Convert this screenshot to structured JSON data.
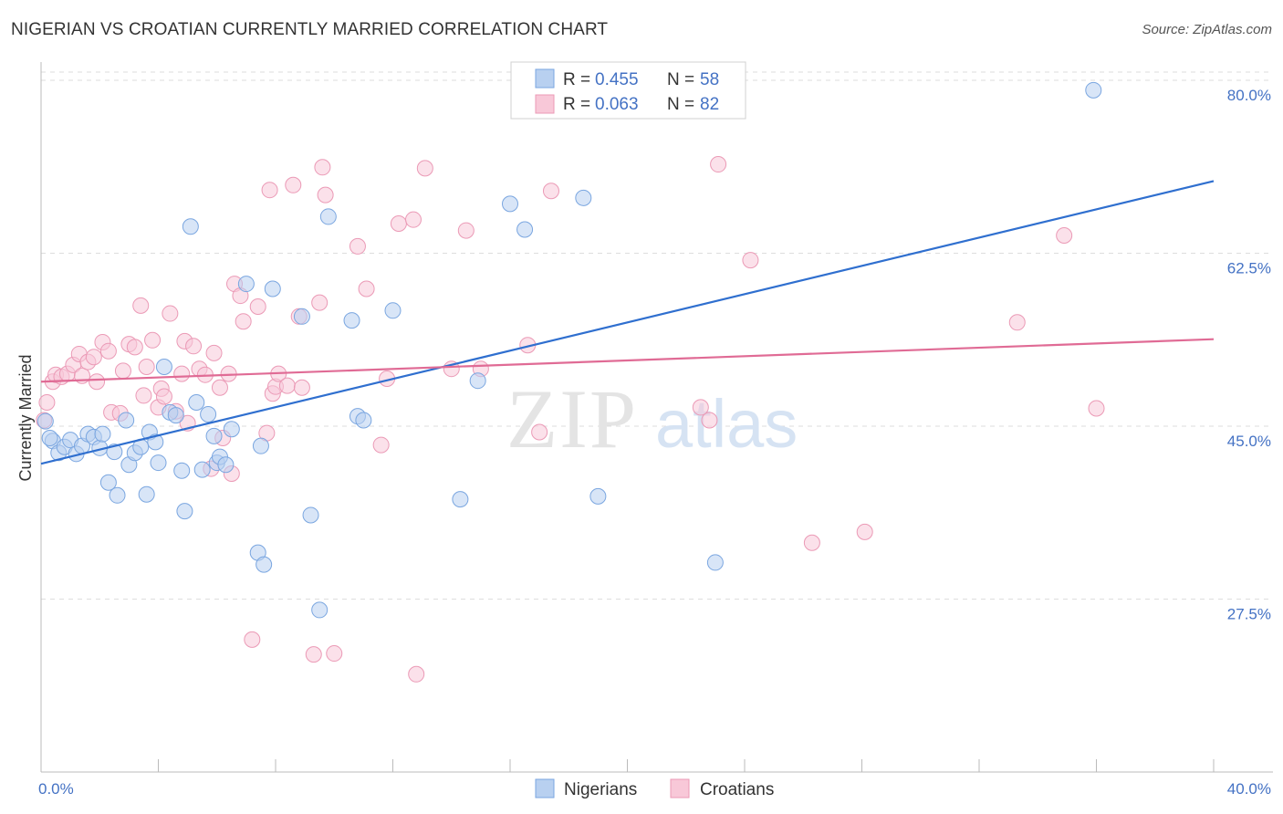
{
  "title": "NIGERIAN VS CROATIAN CURRENTLY MARRIED CORRELATION CHART",
  "source": "Source: ZipAtlas.com",
  "watermark": {
    "zip": "ZIP",
    "atlas": "atlas"
  },
  "colors": {
    "blue": "#4472c4",
    "blue_fill": "#b8d0f0",
    "blue_stroke": "#7aa6e0",
    "blue_line": "#2f6fcf",
    "pink_fill": "#f8c8d8",
    "pink_stroke": "#eb9ab6",
    "pink_line": "#e06b95",
    "grid": "#dddddd",
    "axis": "#bbbbbb"
  },
  "legend": {
    "rows": [
      {
        "r_label": "R = ",
        "r_value": "0.455",
        "n_label": "N = ",
        "n_value": "58"
      },
      {
        "r_label": "R = ",
        "r_value": "0.063",
        "n_label": "N = ",
        "n_value": "82"
      }
    ]
  },
  "bottom_legend": [
    "Nigerians",
    "Croatians"
  ],
  "chart_data": {
    "type": "scatter",
    "title": "NIGERIAN VS CROATIAN CURRENTLY MARRIED CORRELATION CHART",
    "xlabel": "",
    "ylabel": "Currently Married",
    "xlim": [
      0,
      40
    ],
    "ylim": [
      10,
      82
    ],
    "x_ticks": [
      0,
      4,
      8,
      12,
      16,
      20,
      24,
      28,
      32,
      36,
      40
    ],
    "x_tick_labels_shown": [
      {
        "value": 0,
        "label": "0.0%"
      },
      {
        "value": 40,
        "label": "40.0%"
      }
    ],
    "y_ticks": [
      {
        "value": 27.5,
        "label": "27.5%"
      },
      {
        "value": 45.0,
        "label": "45.0%"
      },
      {
        "value": 62.5,
        "label": "62.5%"
      },
      {
        "value": 80.0,
        "label": "80.0%"
      }
    ],
    "series": [
      {
        "name": "Nigerians",
        "R": 0.455,
        "N": 58,
        "trend": {
          "x": [
            0,
            40
          ],
          "y": [
            41.2,
            69.8
          ]
        },
        "points": [
          [
            0.15,
            45.5
          ],
          [
            0.4,
            43.5
          ],
          [
            0.6,
            42.3
          ],
          [
            0.8,
            42.9
          ],
          [
            1.0,
            43.6
          ],
          [
            1.2,
            42.2
          ],
          [
            1.4,
            43.0
          ],
          [
            1.6,
            44.2
          ],
          [
            1.8,
            43.9
          ],
          [
            2.0,
            42.8
          ],
          [
            2.1,
            44.2
          ],
          [
            2.3,
            39.3
          ],
          [
            2.5,
            42.4
          ],
          [
            2.6,
            38.0
          ],
          [
            2.9,
            45.6
          ],
          [
            3.0,
            41.1
          ],
          [
            3.2,
            42.3
          ],
          [
            3.4,
            42.9
          ],
          [
            3.6,
            38.1
          ],
          [
            3.7,
            44.4
          ],
          [
            3.9,
            43.4
          ],
          [
            4.0,
            41.3
          ],
          [
            4.2,
            51.0
          ],
          [
            4.4,
            46.4
          ],
          [
            4.6,
            46.1
          ],
          [
            4.8,
            40.5
          ],
          [
            4.9,
            36.4
          ],
          [
            5.1,
            65.2
          ],
          [
            5.3,
            47.4
          ],
          [
            5.5,
            40.6
          ],
          [
            5.7,
            46.2
          ],
          [
            5.9,
            44.0
          ],
          [
            6.0,
            41.3
          ],
          [
            6.1,
            41.9
          ],
          [
            6.3,
            41.1
          ],
          [
            6.5,
            44.7
          ],
          [
            7.0,
            59.4
          ],
          [
            7.4,
            32.2
          ],
          [
            7.5,
            43.0
          ],
          [
            7.6,
            31.0
          ],
          [
            7.9,
            58.9
          ],
          [
            8.9,
            56.1
          ],
          [
            9.2,
            36.0
          ],
          [
            9.5,
            26.4
          ],
          [
            9.8,
            66.2
          ],
          [
            10.6,
            55.7
          ],
          [
            10.8,
            46.0
          ],
          [
            11.0,
            45.6
          ],
          [
            12.0,
            56.7
          ],
          [
            14.3,
            37.6
          ],
          [
            14.9,
            49.6
          ],
          [
            16.0,
            67.5
          ],
          [
            16.5,
            64.9
          ],
          [
            18.5,
            68.1
          ],
          [
            19.0,
            37.9
          ],
          [
            23.0,
            31.2
          ],
          [
            35.9,
            79.0
          ],
          [
            0.3,
            43.8
          ]
        ]
      },
      {
        "name": "Croatians",
        "R": 0.063,
        "N": 82,
        "trend": {
          "x": [
            0,
            40
          ],
          "y": [
            49.5,
            53.8
          ]
        },
        "points": [
          [
            0.1,
            45.6
          ],
          [
            0.2,
            47.4
          ],
          [
            0.4,
            49.5
          ],
          [
            0.5,
            50.2
          ],
          [
            0.7,
            50.0
          ],
          [
            0.9,
            50.3
          ],
          [
            1.1,
            51.2
          ],
          [
            1.3,
            52.3
          ],
          [
            1.4,
            50.1
          ],
          [
            1.6,
            51.5
          ],
          [
            1.8,
            52.0
          ],
          [
            1.9,
            49.5
          ],
          [
            2.1,
            53.5
          ],
          [
            2.3,
            52.6
          ],
          [
            2.4,
            46.4
          ],
          [
            2.7,
            46.3
          ],
          [
            2.8,
            50.6
          ],
          [
            3.0,
            53.3
          ],
          [
            3.2,
            53.0
          ],
          [
            3.4,
            57.2
          ],
          [
            3.5,
            48.1
          ],
          [
            3.6,
            51.0
          ],
          [
            3.8,
            53.7
          ],
          [
            4.0,
            46.9
          ],
          [
            4.1,
            48.8
          ],
          [
            4.2,
            48.0
          ],
          [
            4.4,
            56.4
          ],
          [
            4.6,
            46.5
          ],
          [
            4.8,
            50.3
          ],
          [
            4.9,
            53.6
          ],
          [
            5.0,
            45.3
          ],
          [
            5.2,
            53.1
          ],
          [
            5.4,
            50.8
          ],
          [
            5.6,
            50.2
          ],
          [
            5.8,
            40.7
          ],
          [
            5.9,
            52.4
          ],
          [
            6.1,
            48.9
          ],
          [
            6.2,
            43.8
          ],
          [
            6.4,
            50.3
          ],
          [
            6.6,
            59.4
          ],
          [
            6.8,
            58.2
          ],
          [
            6.9,
            55.6
          ],
          [
            7.2,
            23.4
          ],
          [
            7.4,
            57.1
          ],
          [
            7.7,
            44.3
          ],
          [
            7.8,
            68.9
          ],
          [
            7.9,
            48.3
          ],
          [
            8.0,
            49.0
          ],
          [
            8.1,
            50.3
          ],
          [
            8.4,
            49.1
          ],
          [
            8.6,
            69.4
          ],
          [
            8.8,
            56.1
          ],
          [
            8.9,
            48.9
          ],
          [
            9.3,
            21.9
          ],
          [
            9.5,
            57.5
          ],
          [
            9.6,
            71.2
          ],
          [
            9.7,
            68.4
          ],
          [
            10.0,
            22.0
          ],
          [
            10.8,
            63.2
          ],
          [
            11.1,
            58.9
          ],
          [
            11.6,
            43.1
          ],
          [
            11.8,
            49.8
          ],
          [
            12.2,
            65.5
          ],
          [
            12.7,
            65.9
          ],
          [
            12.8,
            19.9
          ],
          [
            13.1,
            71.1
          ],
          [
            14.0,
            50.8
          ],
          [
            14.5,
            64.8
          ],
          [
            15.0,
            50.8
          ],
          [
            16.6,
            53.2
          ],
          [
            17.0,
            44.4
          ],
          [
            17.4,
            68.8
          ],
          [
            22.5,
            46.9
          ],
          [
            22.8,
            45.6
          ],
          [
            23.1,
            71.5
          ],
          [
            24.2,
            61.8
          ],
          [
            26.3,
            33.2
          ],
          [
            28.1,
            34.3
          ],
          [
            33.3,
            55.5
          ],
          [
            34.9,
            64.3
          ],
          [
            36.0,
            46.8
          ],
          [
            6.5,
            40.2
          ]
        ]
      }
    ]
  }
}
